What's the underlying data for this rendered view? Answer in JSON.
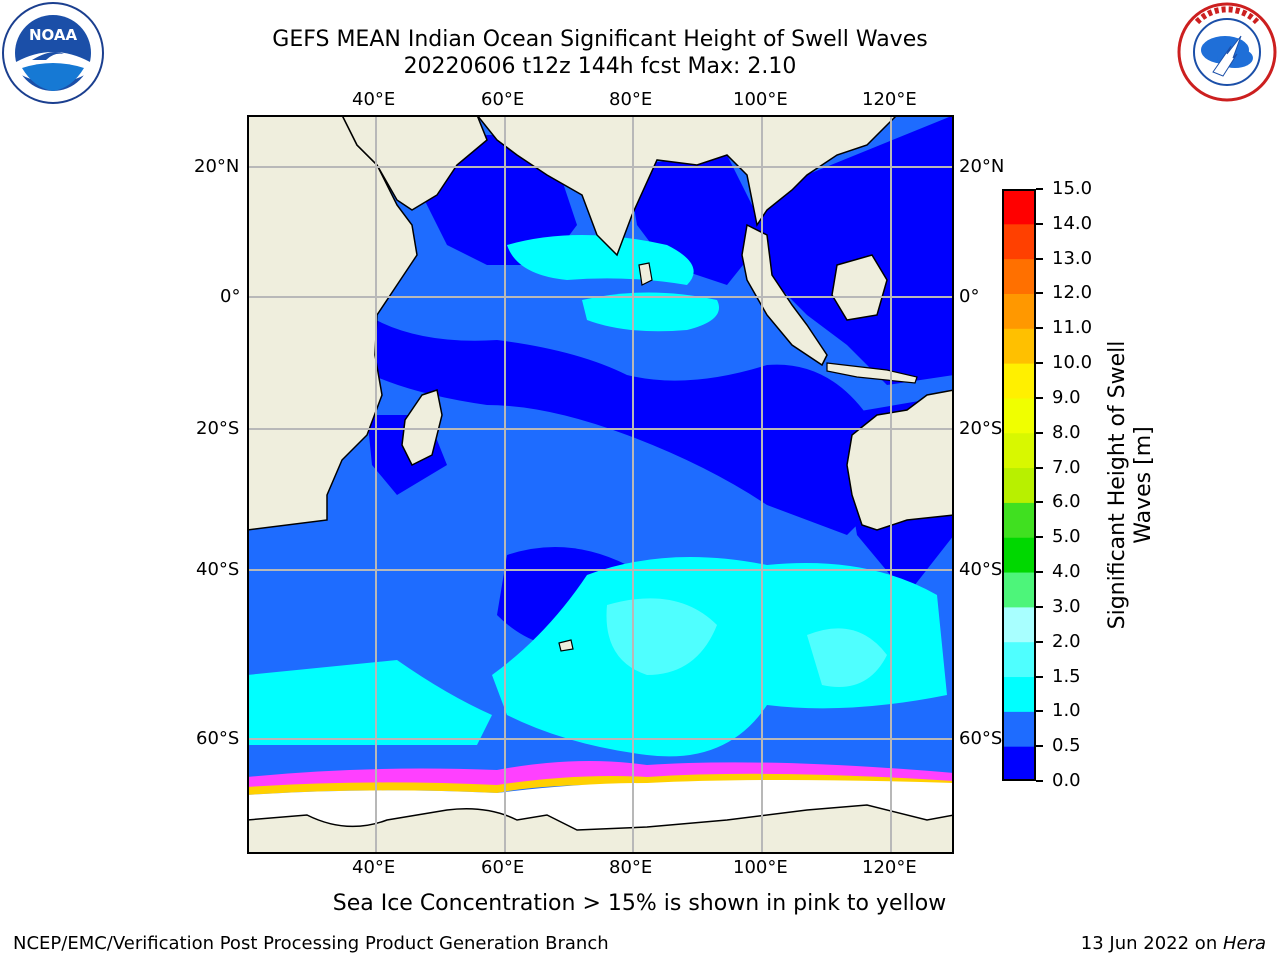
{
  "header": {
    "title_line1": "GEFS MEAN Indian Ocean Significant Height of Swell Waves",
    "title_line2": "20220606 t12z 144h fcst   Max: 2.10"
  },
  "logos": {
    "left": {
      "text": "NOAA",
      "ring_text": "NATIONAL OCEANIC AND ATMOSPHERIC ADMINISTRATION · U.S. DEPARTMENT OF COMMERCE"
    },
    "right": {
      "ring_text": "NATIONAL WEATHER SERVICE"
    }
  },
  "map": {
    "lon_labels_top": [
      "40°E",
      "60°E",
      "80°E",
      "100°E",
      "120°E"
    ],
    "lon_labels_bottom": [
      "40°E",
      "60°E",
      "80°E",
      "100°E",
      "120°E"
    ],
    "lat_labels_left": [
      "20°N",
      "0°",
      "20°S",
      "40°S",
      "60°S"
    ],
    "lat_labels_right": [
      "20°N",
      "0°",
      "20°S",
      "40°S",
      "60°S"
    ],
    "colors": {
      "land": "#efeedd",
      "ice": "#ffffff",
      "water_0": "#0000ff",
      "water_1": "#1e6cff",
      "water_2": "#00ffff",
      "water_3": "#4fffff",
      "ice_edge": "#ff40ff"
    }
  },
  "colorbar": {
    "label_line1": "Significant Height of Swell",
    "label_line2": "Waves [m]",
    "ticks": [
      "15.0",
      "14.0",
      "13.0",
      "12.0",
      "11.0",
      "10.0",
      "9.0",
      "8.0",
      "7.0",
      "6.0",
      "5.0",
      "4.0",
      "3.0",
      "2.0",
      "1.5",
      "1.0",
      "0.5",
      "0.0"
    ],
    "bins": [
      {
        "lo": 0.0,
        "hi": 0.5,
        "color": "#0000ff"
      },
      {
        "lo": 0.5,
        "hi": 1.0,
        "color": "#1e6cff"
      },
      {
        "lo": 1.0,
        "hi": 1.5,
        "color": "#00ffff"
      },
      {
        "lo": 1.5,
        "hi": 2.0,
        "color": "#4fffff"
      },
      {
        "lo": 2.0,
        "hi": 3.0,
        "color": "#a8ffff"
      },
      {
        "lo": 3.0,
        "hi": 4.0,
        "color": "#4df57a"
      },
      {
        "lo": 4.0,
        "hi": 5.0,
        "color": "#00d800"
      },
      {
        "lo": 5.0,
        "hi": 6.0,
        "color": "#40e020"
      },
      {
        "lo": 6.0,
        "hi": 7.0,
        "color": "#b8f000"
      },
      {
        "lo": 7.0,
        "hi": 8.0,
        "color": "#d8f800"
      },
      {
        "lo": 8.0,
        "hi": 9.0,
        "color": "#f0ff00"
      },
      {
        "lo": 9.0,
        "hi": 10.0,
        "color": "#fff000"
      },
      {
        "lo": 10.0,
        "hi": 11.0,
        "color": "#ffc000"
      },
      {
        "lo": 11.0,
        "hi": 12.0,
        "color": "#ff9800"
      },
      {
        "lo": 12.0,
        "hi": 13.0,
        "color": "#ff7000"
      },
      {
        "lo": 13.0,
        "hi": 14.0,
        "color": "#ff4000"
      },
      {
        "lo": 14.0,
        "hi": 15.0,
        "color": "#ff0000"
      }
    ]
  },
  "footer": {
    "caption": "Sea Ice Concentration > 15% is shown in pink to yellow",
    "left": "NCEP/EMC/Verification Post Processing Product Generation Branch",
    "right_prefix": "13 Jun 2022 on ",
    "right_host": "Hera"
  }
}
